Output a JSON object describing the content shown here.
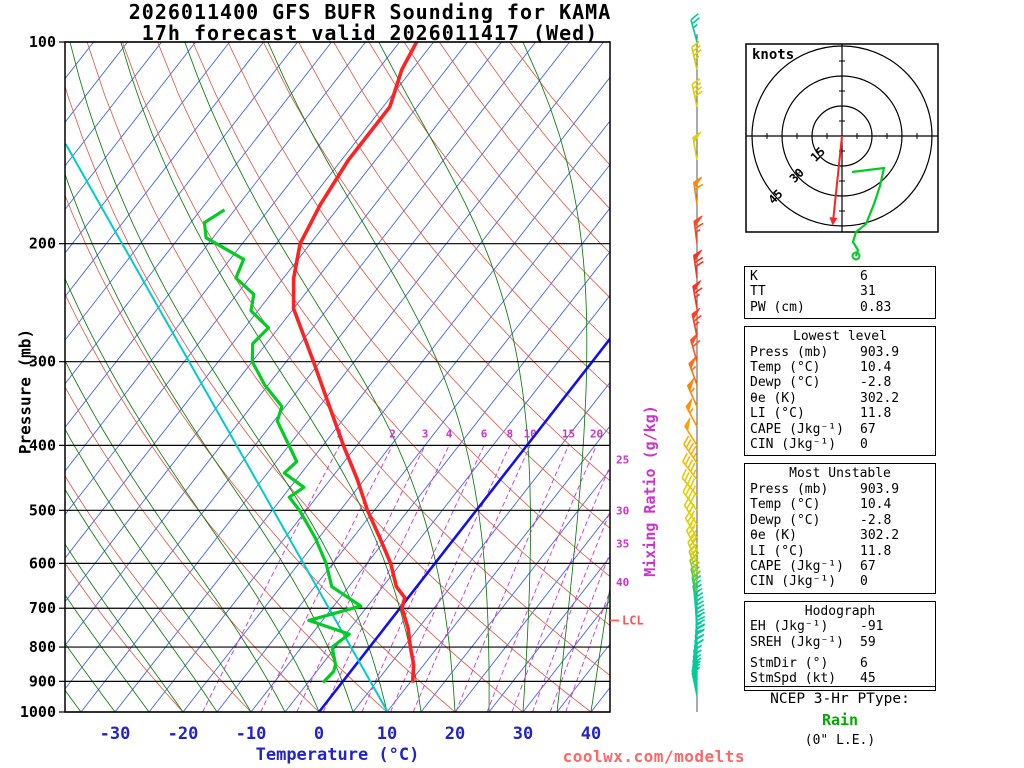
{
  "title": {
    "line1": "2026011400 GFS BUFR Sounding for KAMA",
    "line2": "17h forecast valid 2026011417 (Wed)"
  },
  "axes": {
    "pressure_label": "Pressure (mb)",
    "temperature_label": "Temperature (°C)",
    "mixing_ratio_label": "Mixing Ratio (g/kg)",
    "lcl_label": "LCL"
  },
  "footer": {
    "site": "coolwx.com/modelts"
  },
  "ptype": {
    "title": "NCEP 3-Hr PType:",
    "value": "Rain",
    "extra": "(0\" L.E.)"
  },
  "colors": {
    "temperature_curve": "#FF2222",
    "dewpoint_curve": "#00CC22",
    "parcel_line": "#00CCCC",
    "freezing_line": "#1111EE",
    "isotherm": "#4466DD",
    "dry_adiabat": "#DD5544",
    "moist_adiabat": "#0B7A0B",
    "mixing_ratio": "#CC33CC",
    "axis_temperature": "#2222CC",
    "pressure_lines": "#000000",
    "lcl": "#FF5555",
    "hodograph_trace": "#00CC22",
    "storm_motion_arrow": "#FF2222",
    "ptype_value": "#00AA00",
    "watermark": "#FF6666",
    "barb_staff_line": "#555555"
  },
  "chart_data": {
    "type": "skewt_log_p_sounding",
    "station": "KAMA",
    "model": "GFS BUFR",
    "run": "2026011400",
    "valid": "2026011417 (Wed)",
    "forecast_hour": "17h",
    "skewt_config": {
      "pressure_ticks_mb": [
        100,
        200,
        300,
        400,
        500,
        600,
        700,
        800,
        900,
        1000
      ],
      "temp_ticks_c": [
        -30,
        -20,
        -10,
        0,
        10,
        20,
        30,
        40
      ],
      "isotherm_step_c": 5,
      "isotherm_range_c": [
        -120,
        45
      ],
      "mixing_ratio_g_kg": [
        1,
        2,
        3,
        4,
        6,
        8,
        10,
        15,
        20,
        25,
        30,
        35,
        40
      ],
      "freezing_isotherm_c": 0,
      "lcl_mb": 730
    },
    "temperature_profile": [
      [
        904,
        10.4
      ],
      [
        850,
        8.5
      ],
      [
        800,
        6
      ],
      [
        750,
        3.5
      ],
      [
        700,
        0.3
      ],
      [
        675,
        -0.5
      ],
      [
        650,
        -3
      ],
      [
        600,
        -6.5
      ],
      [
        550,
        -11
      ],
      [
        500,
        -16
      ],
      [
        450,
        -21
      ],
      [
        400,
        -27
      ],
      [
        350,
        -33.5
      ],
      [
        300,
        -41
      ],
      [
        250,
        -50
      ],
      [
        225,
        -53.5
      ],
      [
        200,
        -56.5
      ],
      [
        175,
        -58
      ],
      [
        150,
        -59
      ],
      [
        125,
        -59
      ],
      [
        110,
        -61.5
      ],
      [
        100,
        -62.5
      ]
    ],
    "dewpoint_profile": [
      [
        904,
        -2.8
      ],
      [
        870,
        -2.5
      ],
      [
        850,
        -3
      ],
      [
        800,
        -5.5
      ],
      [
        765,
        -4.5
      ],
      [
        730,
        -12
      ],
      [
        695,
        -6
      ],
      [
        660,
        -11
      ],
      [
        650,
        -12.5
      ],
      [
        600,
        -16
      ],
      [
        550,
        -20.5
      ],
      [
        500,
        -26
      ],
      [
        478,
        -29
      ],
      [
        462,
        -28
      ],
      [
        440,
        -32.5
      ],
      [
        423,
        -32
      ],
      [
        400,
        -35
      ],
      [
        368,
        -39.5
      ],
      [
        350,
        -40.5
      ],
      [
        325,
        -45.5
      ],
      [
        300,
        -50
      ],
      [
        282,
        -52
      ],
      [
        267,
        -51.5
      ],
      [
        252,
        -56
      ],
      [
        238,
        -57.5
      ],
      [
        225,
        -62
      ],
      [
        211,
        -63
      ],
      [
        196,
        -71
      ],
      [
        186,
        -73
      ],
      [
        178,
        -71.5
      ]
    ],
    "parcel_trace_line": [
      [
        1000,
        10.1
      ],
      [
        142,
        -102.4
      ]
    ],
    "wind_barbs": [
      [
        945,
        12,
        348,
        "#00CC99"
      ],
      [
        935,
        13,
        348,
        "#00CC99"
      ],
      [
        925,
        14,
        349,
        "#00CC99"
      ],
      [
        915,
        15,
        350,
        "#00CC99"
      ],
      [
        904,
        16,
        350,
        "#00CC99"
      ],
      [
        890,
        17,
        351,
        "#00CC99"
      ],
      [
        875,
        18,
        352,
        "#00CC99"
      ],
      [
        860,
        19,
        354,
        "#00CC99"
      ],
      [
        845,
        20,
        355,
        "#00CC99"
      ],
      [
        830,
        21,
        356,
        "#00CC99"
      ],
      [
        815,
        22,
        357,
        "#00CC99"
      ],
      [
        800,
        23,
        358,
        "#00CC99"
      ],
      [
        780,
        24,
        358,
        "#00CC99"
      ],
      [
        760,
        25,
        357,
        "#00CC99"
      ],
      [
        740,
        26,
        355,
        "#00CC99"
      ],
      [
        720,
        27,
        353,
        "#00CC99"
      ],
      [
        700,
        28,
        350,
        "#00CC99"
      ],
      [
        680,
        29,
        348,
        "#22CC77"
      ],
      [
        660,
        30,
        345,
        "#55CC44"
      ],
      [
        640,
        31,
        342,
        "#88CC22"
      ],
      [
        620,
        32,
        340,
        "#BBCC11"
      ],
      [
        600,
        33,
        337,
        "#D8D000"
      ],
      [
        575,
        35,
        333,
        "#E0D000"
      ],
      [
        550,
        37,
        330,
        "#E0D000"
      ],
      [
        525,
        39,
        327,
        "#E0D000"
      ],
      [
        500,
        41,
        323,
        "#E0D000"
      ],
      [
        475,
        43,
        320,
        "#E8C800"
      ],
      [
        450,
        46,
        322,
        "#F0BC00"
      ],
      [
        425,
        48,
        325,
        "#FFAE00"
      ],
      [
        400,
        50,
        328,
        "#FFA000"
      ],
      [
        375,
        53,
        332,
        "#FF9400"
      ],
      [
        350,
        56,
        336,
        "#FF8800"
      ],
      [
        325,
        59,
        340,
        "#FF6E10"
      ],
      [
        300,
        62,
        344,
        "#FF5420"
      ],
      [
        275,
        65,
        348,
        "#FF4020"
      ],
      [
        250,
        69,
        350,
        "#FF3020"
      ],
      [
        225,
        71,
        352,
        "#FF3020"
      ],
      [
        200,
        68,
        353,
        "#FF4820"
      ],
      [
        175,
        60,
        352,
        "#FF8800"
      ],
      [
        150,
        52,
        350,
        "#E0D000"
      ],
      [
        125,
        42,
        348,
        "#E0D000"
      ],
      [
        110,
        34,
        347,
        "#D8CC00"
      ],
      [
        100,
        26,
        345,
        "#00CC99"
      ]
    ],
    "hodograph": {
      "units_label": "knots",
      "rings_kt": [
        15,
        30,
        45
      ],
      "ring_labels": [
        "15",
        "30",
        "45"
      ],
      "storm_motion": {
        "dir_deg": 6,
        "speed_kt": 45
      },
      "trace_east_south_kt": [
        [
          5,
          18
        ],
        [
          13,
          17
        ],
        [
          21,
          16
        ],
        [
          19,
          25
        ],
        [
          16,
          34
        ],
        [
          12,
          44
        ],
        [
          7,
          48
        ],
        [
          5.5,
          53
        ],
        [
          8,
          57
        ],
        [
          7,
          60
        ]
      ]
    }
  },
  "side_panels": {
    "sections": [
      {
        "name": "indices",
        "header": null,
        "groups": [
          [
            [
              "K",
              "6"
            ],
            [
              "TT",
              "31"
            ],
            [
              "PW (cm)",
              "0.83"
            ]
          ]
        ]
      },
      {
        "name": "lowest-level",
        "header": "Lowest level",
        "groups": [
          [
            [
              "Press (mb)",
              "903.9"
            ],
            [
              "Temp (°C)",
              "10.4"
            ],
            [
              "Dewp (°C)",
              "-2.8"
            ],
            [
              "θe (K)",
              "302.2"
            ],
            [
              "LI (°C)",
              "11.8"
            ],
            [
              "CAPE (Jkg⁻¹)",
              "67"
            ],
            [
              "CIN (Jkg⁻¹)",
              "0"
            ]
          ]
        ]
      },
      {
        "name": "most-unstable",
        "header": "Most Unstable",
        "groups": [
          [
            [
              "Press (mb)",
              "903.9"
            ],
            [
              "Temp (°C)",
              "10.4"
            ],
            [
              "Dewp (°C)",
              "-2.8"
            ],
            [
              "θe (K)",
              "302.2"
            ],
            [
              "LI (°C)",
              "11.8"
            ],
            [
              "CAPE (Jkg⁻¹)",
              "67"
            ],
            [
              "CIN (Jkg⁻¹)",
              "0"
            ]
          ]
        ]
      },
      {
        "name": "hodograph",
        "header": "Hodograph",
        "groups": [
          [
            [
              "EH (Jkg⁻¹)",
              "-91"
            ],
            [
              "SREH (Jkg⁻¹)",
              "59"
            ]
          ],
          [
            [
              "StmDir (°)",
              "6"
            ],
            [
              "StmSpd (kt)",
              "45"
            ]
          ]
        ]
      }
    ]
  }
}
